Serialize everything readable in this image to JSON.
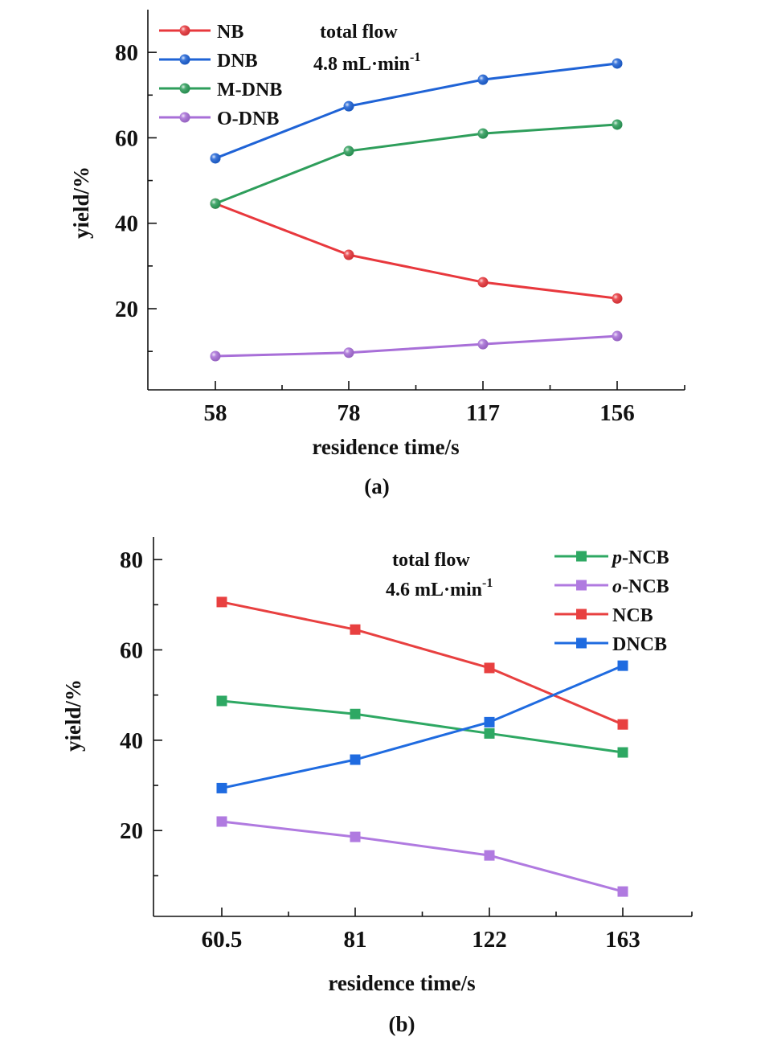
{
  "chart_data": [
    {
      "panel": "a",
      "type": "line",
      "panel_label": "(a)",
      "xlabel": "residence time/s",
      "ylabel": "yield/%",
      "categories": [
        "58",
        "78",
        "117",
        "156"
      ],
      "ylim": [
        1,
        90
      ],
      "yticks": [
        20,
        40,
        60,
        80
      ],
      "yminor": [
        10,
        30,
        50,
        70
      ],
      "grid": false,
      "marker": "circle",
      "annotation": {
        "line1": "total flow",
        "line2_main": "4.8 mL·min",
        "line2_sup": "-1"
      },
      "legend_position": "top-left",
      "series": [
        {
          "name": "NB",
          "color": "#e8383d",
          "values": [
            44.6,
            32.6,
            26.2,
            22.4
          ]
        },
        {
          "name": "DNB",
          "color": "#1f63d6",
          "values": [
            55.2,
            67.4,
            73.6,
            77.4
          ]
        },
        {
          "name": "M-DNB",
          "color": "#2e9e5b",
          "values": [
            44.6,
            56.9,
            61.0,
            63.1
          ]
        },
        {
          "name": "O-DNB",
          "color": "#a86fd8",
          "values": [
            8.9,
            9.7,
            11.7,
            13.6
          ]
        }
      ]
    },
    {
      "panel": "b",
      "type": "line",
      "panel_label": "(b)",
      "xlabel": "residence time/s",
      "ylabel": "yield/%",
      "categories": [
        "60.5",
        "81",
        "122",
        "163"
      ],
      "ylim": [
        1,
        85
      ],
      "yticks": [
        20,
        40,
        60,
        80
      ],
      "yminor": [
        10,
        30,
        50,
        70
      ],
      "grid": false,
      "marker": "square",
      "annotation": {
        "line1": "total flow",
        "line2_main": "4.6 mL·min",
        "line2_sup": "-1"
      },
      "legend_position": "top-right",
      "series": [
        {
          "name": "p-NCB",
          "prefix_italic": "p",
          "suffix": "-NCB",
          "color": "#2ea863",
          "values": [
            48.7,
            45.8,
            41.5,
            37.3
          ]
        },
        {
          "name": "o-NCB",
          "prefix_italic": "o",
          "suffix": "-NCB",
          "color": "#b07ae0",
          "values": [
            22.0,
            18.6,
            14.5,
            6.5
          ]
        },
        {
          "name": "NCB",
          "color": "#e84040",
          "values": [
            70.6,
            64.5,
            56.0,
            43.5
          ]
        },
        {
          "name": "DNCB",
          "color": "#1f6be0",
          "values": [
            29.4,
            35.7,
            44.0,
            56.5
          ]
        }
      ]
    }
  ]
}
